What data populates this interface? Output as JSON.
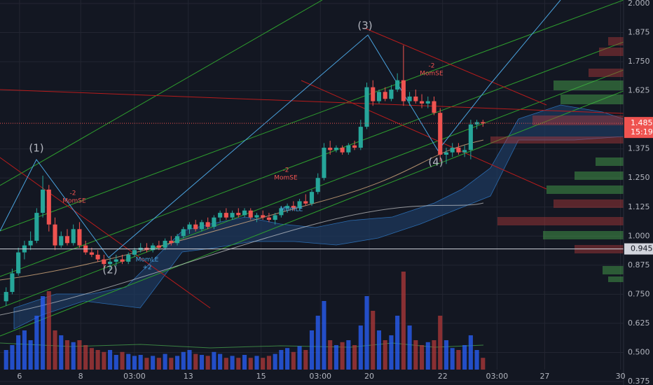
{
  "chart_data": {
    "type": "candlestick",
    "up_color": "#26a69a",
    "down_color": "#ef5350",
    "volume_up_color": "#2962ff",
    "volume_down_color": "#b23a3a",
    "grid": true,
    "xlim": [
      -1,
      101
    ],
    "xticks": [
      {
        "value": 2.2,
        "label": "6"
      },
      {
        "value": 12.2,
        "label": "8"
      },
      {
        "value": 21,
        "label": "03:00"
      },
      {
        "value": 29.8,
        "label": "13"
      },
      {
        "value": 41.7,
        "label": "15"
      },
      {
        "value": 51.4,
        "label": "03:00"
      },
      {
        "value": 59.4,
        "label": "20"
      },
      {
        "value": 71.4,
        "label": "22"
      },
      {
        "value": 80.3,
        "label": "03:00"
      },
      {
        "value": 88.1,
        "label": "27"
      },
      {
        "value": 100.5,
        "label": "30"
      }
    ],
    "ylim": [
      0.36,
      2.015
    ],
    "yticks": [
      {
        "value": 2,
        "label": "2.000"
      },
      1.875,
      {
        "value": 1.75,
        "label": "1.750"
      },
      1.625,
      1.375,
      {
        "value": 1.25,
        "label": "1.250"
      },
      1.125,
      {
        "value": 1,
        "label": "1.000"
      },
      0.875,
      {
        "value": 0.75,
        "label": "0.750"
      },
      0.625,
      {
        "value": 0.5,
        "label": "0.500"
      },
      0.375
    ],
    "last_price": 1.485,
    "countdown": "15:19",
    "marker_price": 0.945,
    "annotations": [
      {
        "text": "(1)"
      },
      {
        "text": "(2)"
      },
      {
        "text": "(3)"
      },
      {
        "text": "(4)"
      },
      {
        "text": "-2"
      },
      {
        "text": "MomSE"
      },
      {
        "text": "MomLE"
      },
      {
        "text": "+2"
      },
      {
        "text": "-2"
      },
      {
        "text": "MomSE"
      },
      {
        "text": "MomLE"
      },
      {
        "text": "-2"
      },
      {
        "text": "MomSE"
      }
    ],
    "open": [
      0.72,
      0.76,
      0.84,
      0.93,
      0.96,
      0.98,
      1.1,
      1.2,
      1.05,
      0.96,
      1.0,
      0.97,
      1.03,
      0.96,
      0.93,
      0.92,
      0.9,
      0.88,
      0.89,
      0.9,
      0.89,
      0.92,
      0.94,
      0.95,
      0.94,
      0.96,
      0.95,
      0.98,
      0.97,
      1.0,
      1.03,
      1.05,
      1.03,
      1.06,
      1.04,
      1.08,
      1.1,
      1.08,
      1.1,
      1.09,
      1.11,
      1.08,
      1.09,
      1.08,
      1.07,
      1.09,
      1.12,
      1.13,
      1.12,
      1.15,
      1.14,
      1.19,
      1.25,
      1.38,
      1.37,
      1.38,
      1.36,
      1.39,
      1.38,
      1.47,
      1.64,
      1.58,
      1.62,
      1.59,
      1.63,
      1.67,
      1.58,
      1.6,
      1.58,
      1.57,
      1.58,
      1.53,
      1.35,
      1.36,
      1.38,
      1.36,
      1.37,
      1.48,
      1.49
    ],
    "high": [
      0.78,
      0.86,
      0.95,
      0.98,
      1.02,
      1.12,
      1.26,
      1.22,
      1.08,
      1.02,
      1.03,
      1.05,
      1.06,
      0.98,
      0.95,
      0.94,
      0.92,
      0.91,
      0.92,
      0.92,
      0.93,
      0.95,
      0.97,
      0.97,
      0.97,
      0.98,
      0.99,
      1.0,
      1.01,
      1.04,
      1.06,
      1.07,
      1.07,
      1.08,
      1.09,
      1.11,
      1.12,
      1.11,
      1.12,
      1.12,
      1.12,
      1.1,
      1.11,
      1.1,
      1.1,
      1.13,
      1.14,
      1.15,
      1.16,
      1.18,
      1.2,
      1.27,
      1.4,
      1.41,
      1.39,
      1.39,
      1.4,
      1.41,
      1.5,
      1.66,
      1.67,
      1.63,
      1.64,
      1.65,
      1.7,
      1.82,
      1.62,
      1.63,
      1.61,
      1.6,
      1.6,
      1.55,
      1.38,
      1.4,
      1.4,
      1.39,
      1.5,
      1.5,
      1.5
    ],
    "low": [
      0.7,
      0.75,
      0.83,
      0.9,
      0.94,
      0.97,
      1.08,
      1.02,
      0.94,
      0.95,
      0.96,
      0.96,
      0.95,
      0.92,
      0.91,
      0.89,
      0.86,
      0.85,
      0.87,
      0.88,
      0.88,
      0.91,
      0.93,
      0.93,
      0.93,
      0.94,
      0.94,
      0.96,
      0.96,
      0.99,
      1.01,
      1.02,
      1.02,
      1.03,
      1.03,
      1.06,
      1.07,
      1.07,
      1.08,
      1.08,
      1.07,
      1.06,
      1.07,
      1.06,
      1.05,
      1.08,
      1.1,
      1.11,
      1.11,
      1.13,
      1.13,
      1.18,
      1.24,
      1.35,
      1.36,
      1.35,
      1.35,
      1.37,
      1.37,
      1.46,
      1.56,
      1.57,
      1.58,
      1.58,
      1.62,
      1.56,
      1.56,
      1.57,
      1.55,
      1.55,
      1.52,
      1.32,
      1.31,
      1.34,
      1.35,
      1.34,
      1.33,
      1.46,
      1.47
    ],
    "close": [
      0.76,
      0.84,
      0.93,
      0.96,
      0.98,
      1.1,
      1.2,
      1.05,
      0.96,
      1.0,
      0.97,
      1.03,
      0.96,
      0.93,
      0.92,
      0.9,
      0.88,
      0.89,
      0.9,
      0.89,
      0.92,
      0.94,
      0.95,
      0.94,
      0.96,
      0.95,
      0.98,
      0.97,
      1.0,
      1.03,
      1.05,
      1.03,
      1.06,
      1.04,
      1.08,
      1.1,
      1.08,
      1.1,
      1.09,
      1.11,
      1.08,
      1.09,
      1.08,
      1.07,
      1.09,
      1.12,
      1.13,
      1.12,
      1.15,
      1.14,
      1.19,
      1.25,
      1.38,
      1.37,
      1.38,
      1.36,
      1.39,
      1.38,
      1.47,
      1.64,
      1.58,
      1.62,
      1.59,
      1.63,
      1.67,
      1.58,
      1.6,
      1.58,
      1.57,
      1.58,
      1.53,
      1.35,
      1.36,
      1.38,
      1.36,
      1.37,
      1.48,
      1.49,
      1.485
    ],
    "volume": [
      20,
      25,
      35,
      40,
      30,
      55,
      75,
      80,
      40,
      35,
      30,
      28,
      30,
      25,
      22,
      20,
      18,
      20,
      15,
      18,
      16,
      14,
      15,
      12,
      14,
      12,
      16,
      12,
      14,
      18,
      20,
      16,
      15,
      14,
      18,
      16,
      12,
      14,
      12,
      15,
      12,
      14,
      12,
      14,
      16,
      20,
      22,
      18,
      24,
      20,
      40,
      55,
      70,
      30,
      25,
      28,
      30,
      25,
      45,
      75,
      60,
      40,
      30,
      35,
      55,
      100,
      45,
      30,
      25,
      28,
      30,
      55,
      30,
      22,
      20,
      25,
      35,
      20,
      12
    ]
  }
}
